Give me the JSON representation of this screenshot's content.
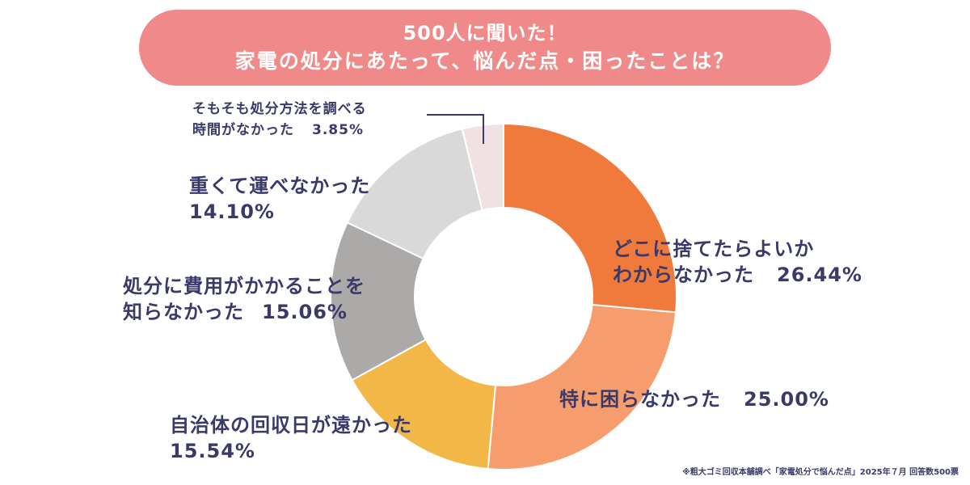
{
  "chart_data": {
    "type": "pie",
    "title_line1": "500人に聞いた！",
    "title_line2": "家電の処分にあたって、悩んだ点・困ったことは？",
    "slices": [
      {
        "label": "どこに捨てたらよいか\nわからなかった",
        "value": 26.44,
        "value_text": "26.44%",
        "color": "#ef7a3c"
      },
      {
        "label": "特に困らなかった",
        "value": 25.0,
        "value_text": "25.00%",
        "color": "#f79c6c"
      },
      {
        "label": "自治体の回収日が遠かった",
        "value": 15.54,
        "value_text": "15.54%",
        "color": "#f2b747"
      },
      {
        "label": "処分に費用がかかることを\n知らなかった",
        "value": 15.06,
        "value_text": "15.06%",
        "color": "#aca9a9"
      },
      {
        "label": "重くて運べなかった",
        "value": 14.1,
        "value_text": "14.10%",
        "color": "#d9d9d9"
      },
      {
        "label": "そもそも処分方法を調べる\n時間がなかった",
        "value": 3.85,
        "value_text": "3.85%",
        "color": "#f0e2e2"
      }
    ],
    "source": "※粗大ゴミ回収本舗調べ「家電処分で悩んだ点」2025年７月 回答数500票"
  }
}
